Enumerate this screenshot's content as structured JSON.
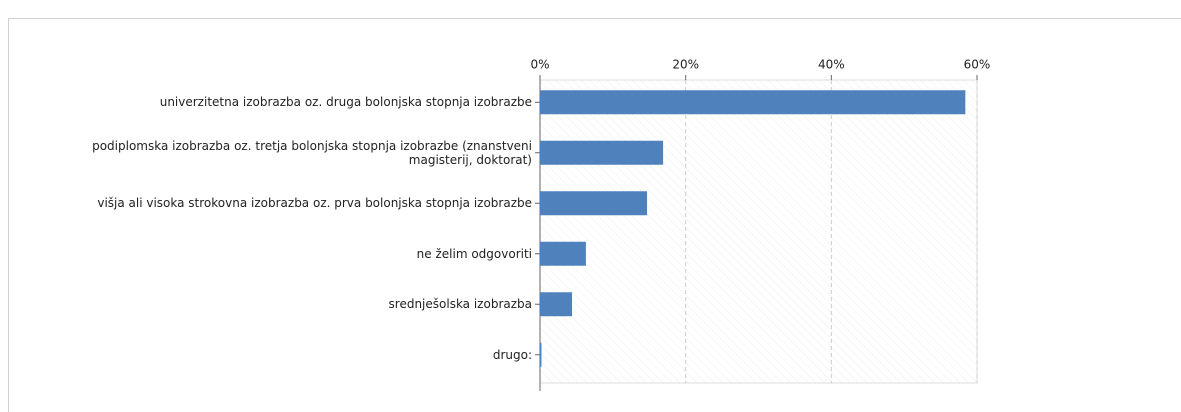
{
  "chart_data": {
    "type": "barh",
    "categories": [
      "univerzitetna izobrazba oz. druga bolonjska stopnja izobrazbe",
      "podiplomska izobrazba oz. tretja bolonjska stopnja izobrazbe (znanstveni magisterij, doktorat)",
      "višja ali visoka strokovna izobrazba oz. prva bolonjska stopnja izobrazbe",
      "ne želim odgovoriti",
      "srednješolska izobrazba",
      "drugo:"
    ],
    "values": [
      58.4,
      16.9,
      14.7,
      6.3,
      4.4,
      0.2
    ],
    "color": "#4f81bd",
    "xlim": [
      0,
      60
    ],
    "xticks": [
      {
        "value": 0,
        "label": "0%"
      },
      {
        "value": 20,
        "label": "20%"
      },
      {
        "value": 40,
        "label": "40%"
      },
      {
        "value": 60,
        "label": "60%"
      }
    ],
    "grid": true
  }
}
